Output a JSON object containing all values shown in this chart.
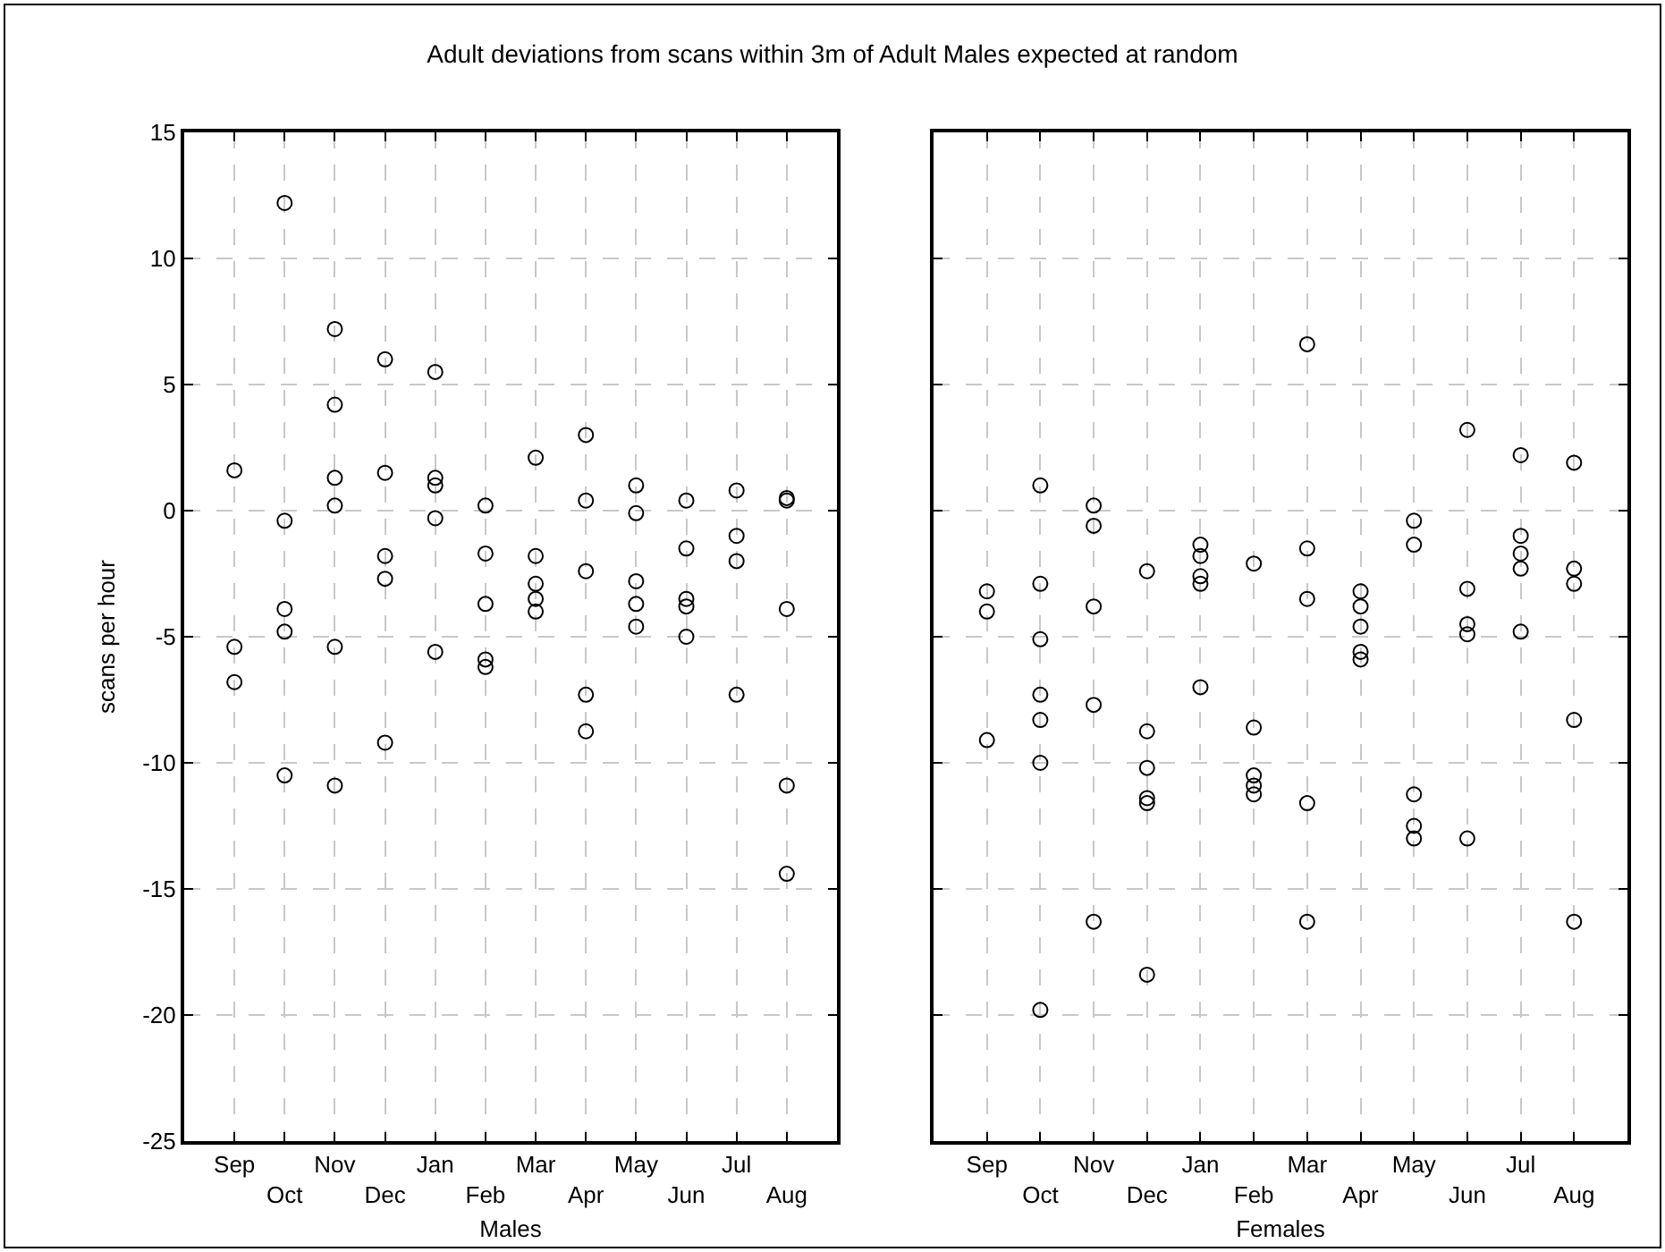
{
  "chart_data": [
    {
      "type": "scatter",
      "title": "Adult deviations from scans within 3m of Adult Males expected at random",
      "xlabel": "Males",
      "ylabel": "scans per hour",
      "marker": "circle",
      "grid": true,
      "categories": [
        "Sep",
        "Oct",
        "Nov",
        "Dec",
        "Jan",
        "Feb",
        "Mar",
        "Apr",
        "May",
        "Jun",
        "Jul",
        "Aug"
      ],
      "series": [
        {
          "color": "#000000",
          "x": [
            "Sep",
            "Sep",
            "Sep",
            "Oct",
            "Oct",
            "Oct",
            "Oct",
            "Oct",
            "Nov",
            "Nov",
            "Nov",
            "Nov",
            "Nov",
            "Nov",
            "Dec",
            "Dec",
            "Dec",
            "Dec",
            "Dec",
            "Jan",
            "Jan",
            "Jan",
            "Jan",
            "Jan",
            "Feb",
            "Feb",
            "Feb",
            "Feb",
            "Feb",
            "Mar",
            "Mar",
            "Mar",
            "Mar",
            "Mar",
            "Apr",
            "Apr",
            "Apr",
            "Apr",
            "Apr",
            "May",
            "May",
            "May",
            "May",
            "May",
            "Jun",
            "Jun",
            "Jun",
            "Jun",
            "Jun",
            "Jul",
            "Jul",
            "Jul",
            "Jul",
            "Aug",
            "Aug",
            "Aug",
            "Aug",
            "Aug"
          ],
          "values": [
            1.6,
            -5.4,
            -6.8,
            12.2,
            -0.4,
            -3.9,
            -4.8,
            -10.5,
            7.2,
            4.2,
            1.3,
            0.2,
            -5.4,
            -10.9,
            6.0,
            1.5,
            -1.8,
            -2.7,
            -9.2,
            5.5,
            1.3,
            1.0,
            -0.3,
            -5.6,
            0.2,
            -1.7,
            -3.7,
            -5.9,
            -6.2,
            2.1,
            -1.8,
            -2.9,
            -3.5,
            -4.0,
            3.0,
            0.4,
            -2.4,
            -7.3,
            -8.75,
            1.0,
            -0.1,
            -2.8,
            -3.7,
            -4.6,
            0.4,
            -1.5,
            -3.5,
            -3.8,
            -5.0,
            0.8,
            -1.0,
            -2.0,
            -7.3,
            0.5,
            0.4,
            -3.9,
            -10.9,
            -14.4
          ]
        }
      ],
      "ylim": [
        -25,
        15
      ],
      "yticks": [
        -25,
        -20,
        -15,
        -10,
        -5,
        0,
        5,
        10,
        15
      ]
    },
    {
      "type": "scatter",
      "xlabel": "Females",
      "marker": "circle",
      "grid": true,
      "tick_labels": "x",
      "categories": [
        "Sep",
        "Oct",
        "Nov",
        "Dec",
        "Jan",
        "Feb",
        "Mar",
        "Apr",
        "May",
        "Jun",
        "Jul",
        "Aug"
      ],
      "series": [
        {
          "color": "#000000",
          "x": [
            "Sep",
            "Sep",
            "Sep",
            "Oct",
            "Oct",
            "Oct",
            "Oct",
            "Oct",
            "Oct",
            "Oct",
            "Nov",
            "Nov",
            "Nov",
            "Nov",
            "Nov",
            "Dec",
            "Dec",
            "Dec",
            "Dec",
            "Dec",
            "Dec",
            "Jan",
            "Jan",
            "Jan",
            "Jan",
            "Jan",
            "Feb",
            "Feb",
            "Feb",
            "Feb",
            "Feb",
            "Mar",
            "Mar",
            "Mar",
            "Mar",
            "Mar",
            "Apr",
            "Apr",
            "Apr",
            "Apr",
            "Apr",
            "May",
            "May",
            "May",
            "May",
            "May",
            "Jun",
            "Jun",
            "Jun",
            "Jun",
            "Jun",
            "Jul",
            "Jul",
            "Jul",
            "Jul",
            "Jul",
            "Aug",
            "Aug",
            "Aug",
            "Aug",
            "Aug"
          ],
          "values": [
            -3.2,
            -4.0,
            -9.1,
            1.0,
            -2.9,
            -5.1,
            -7.3,
            -8.3,
            -10.0,
            -19.8,
            0.2,
            -0.6,
            -3.8,
            -7.7,
            -16.3,
            -2.4,
            -8.75,
            -10.2,
            -11.4,
            -11.6,
            -18.4,
            -1.35,
            -1.8,
            -2.6,
            -2.9,
            -7.0,
            -2.1,
            -8.6,
            -10.5,
            -10.9,
            -11.25,
            6.6,
            -1.5,
            -3.5,
            -11.6,
            -16.3,
            -3.2,
            -3.8,
            -4.6,
            -5.6,
            -5.9,
            -0.4,
            -1.35,
            -11.25,
            -12.5,
            -13.0,
            3.2,
            -3.1,
            -4.5,
            -4.9,
            -13.0,
            2.2,
            -1.0,
            -1.7,
            -2.3,
            -4.8,
            1.9,
            -2.3,
            -2.9,
            -8.3,
            -16.3
          ]
        }
      ],
      "ylim": [
        -25,
        15
      ],
      "yticks": [
        -25,
        -20,
        -15,
        -10,
        -5,
        0,
        5,
        10,
        15
      ]
    }
  ]
}
